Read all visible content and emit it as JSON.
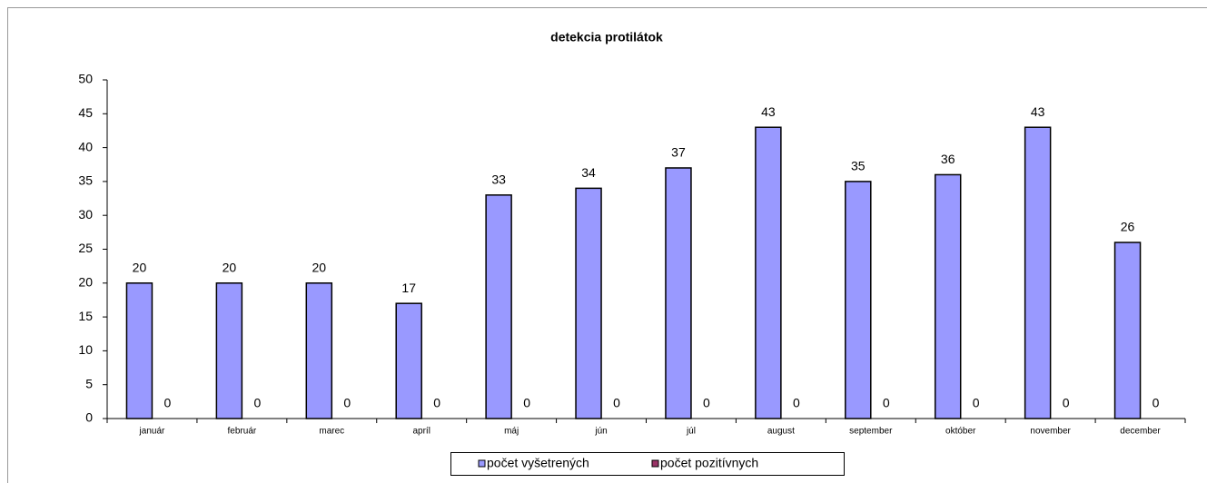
{
  "chart_data": {
    "type": "bar",
    "title": "detekcia protilátok",
    "categories": [
      "január",
      "február",
      "marec",
      "apríl",
      "máj",
      "jún",
      "júl",
      "august",
      "september",
      "október",
      "november",
      "december"
    ],
    "series": [
      {
        "name": "počet vyšetrených",
        "color": "#9999ff",
        "values": [
          20,
          20,
          20,
          17,
          33,
          34,
          37,
          43,
          35,
          36,
          43,
          26
        ]
      },
      {
        "name": "počet pozitívnych",
        "color": "#993366",
        "values": [
          0,
          0,
          0,
          0,
          0,
          0,
          0,
          0,
          0,
          0,
          0,
          0
        ]
      }
    ],
    "ylim": [
      0,
      50
    ],
    "yticks": [
      0,
      5,
      10,
      15,
      20,
      25,
      30,
      35,
      40,
      45,
      50
    ],
    "grid": false,
    "legend": "bottom"
  }
}
